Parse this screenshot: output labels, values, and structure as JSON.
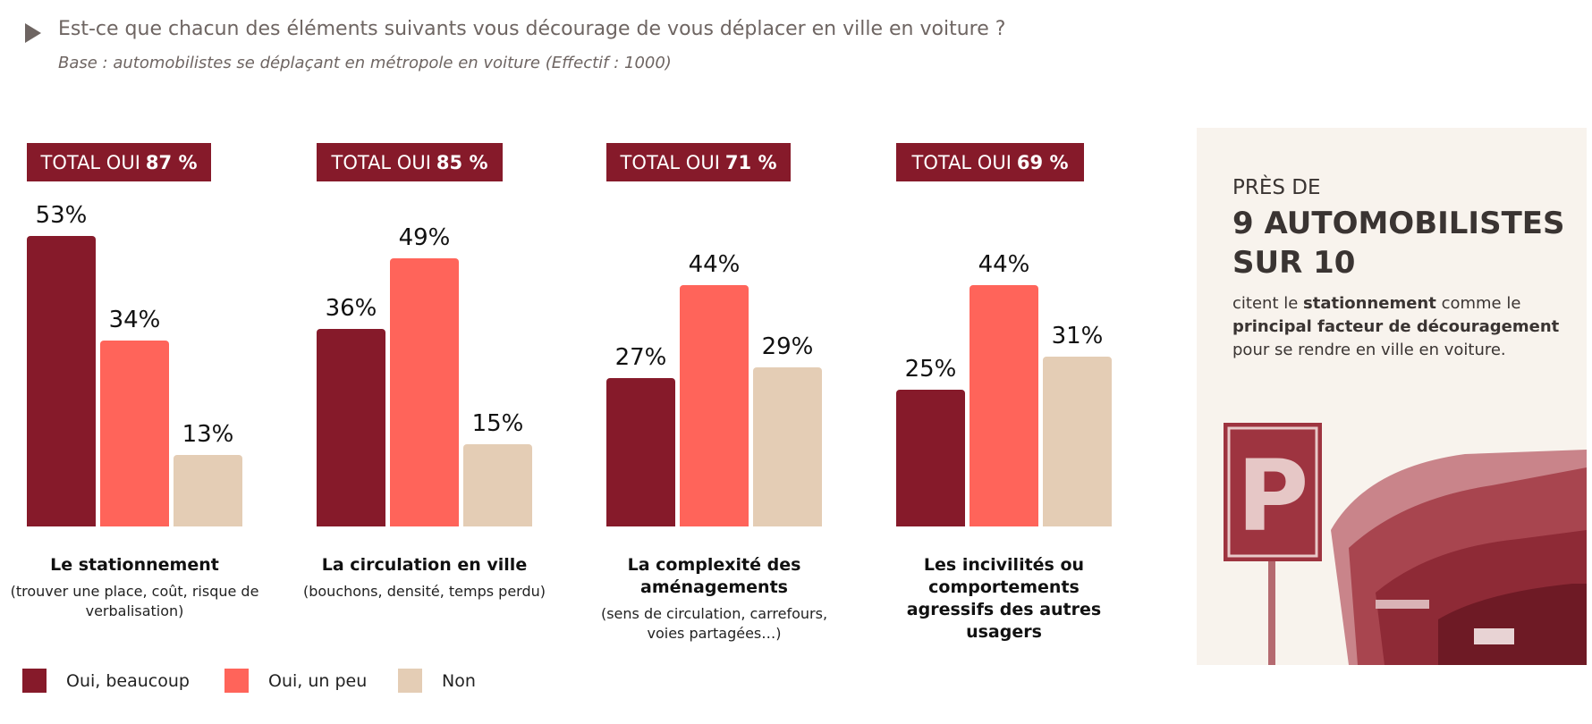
{
  "header": {
    "title": "Est-ce que chacun des éléments suivants vous décourage de vous déplacer en ville en voiture ?",
    "subtitle": "Base : automobilistes se déplaçant en métropole en voiture (Effectif : 1000)"
  },
  "chart_data": {
    "type": "bar",
    "ylim": [
      0,
      100
    ],
    "unit": "%",
    "categories": [
      "Le stationnement",
      "La circulation en ville",
      "La complexité des aménagements",
      "Les incivilités ou comportements agressifs des autres usagers"
    ],
    "category_details": [
      "(trouver une place, coût, risque de verbalisation)",
      "(bouchons, densité, temps perdu)",
      "(sens de circulation, carrefours, voies partagées…)",
      ""
    ],
    "totals": [
      {
        "label": "TOTAL OUI",
        "value": "87 %"
      },
      {
        "label": "TOTAL OUI",
        "value": "85 %"
      },
      {
        "label": "TOTAL OUI",
        "value": "71 %"
      },
      {
        "label": "TOTAL OUI",
        "value": "69 %"
      }
    ],
    "series": [
      {
        "name": "Oui, beaucoup",
        "color": "#861a2a",
        "values": [
          53,
          36,
          27,
          25
        ]
      },
      {
        "name": "Oui, un peu",
        "color": "#ff645a",
        "values": [
          34,
          49,
          44,
          44
        ]
      },
      {
        "name": "Non",
        "color": "#e4cdb5",
        "values": [
          13,
          15,
          29,
          31
        ]
      }
    ],
    "legend": "bottom-left",
    "grid": false
  },
  "panel": {
    "line1": "PRÈS DE",
    "line2": "9 AUTOMOBILISTES",
    "line3": "SUR 10",
    "body_pre": "citent le ",
    "body_b1": "stationnement",
    "body_mid": " comme le ",
    "body_b2": "principal facteur de découragement",
    "body_post": " pour se rendre en ville en voiture.",
    "image": "parking-sign-and-cars-photo",
    "sign_letter": "P"
  }
}
